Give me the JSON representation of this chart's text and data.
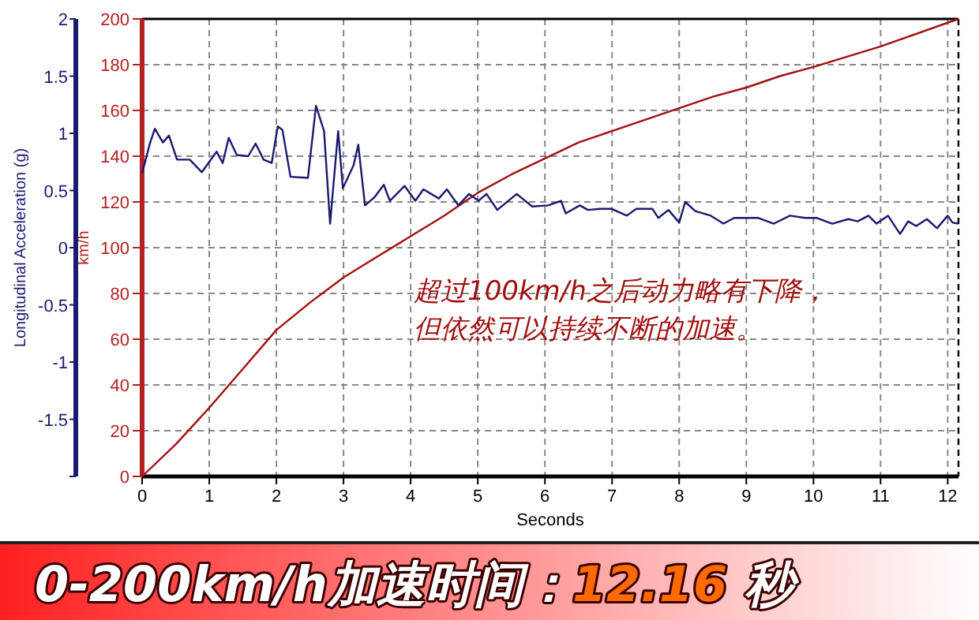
{
  "chart_data": {
    "type": "line",
    "title": "0-200km/h加速时间：12.16 秒",
    "xlabel": "Seconds",
    "ylabel": "km/h",
    "y2label": "Longitudinal Acceleration (g)",
    "xlim": [
      0,
      12.16
    ],
    "xticks": [
      0,
      1,
      2,
      3,
      4,
      5,
      6,
      7,
      8,
      9,
      10,
      11,
      12
    ],
    "ylim": [
      0,
      200
    ],
    "yticks": [
      0,
      20,
      40,
      60,
      80,
      100,
      120,
      140,
      160,
      180,
      200
    ],
    "y2lim": [
      -2,
      2
    ],
    "y2ticks": [
      {
        "value": -2,
        "label": null
      },
      -1.5,
      -1,
      -0.5,
      0,
      0.5,
      1,
      1.5,
      2
    ],
    "grid": true,
    "ref_lines": [
      {
        "axis": "x",
        "value": 12.16,
        "color": "#000000",
        "line_style": "dashed"
      }
    ],
    "annotations": [
      "超过100km/h之后动力略有下降，",
      "但依然可以持续不断的加速。"
    ],
    "series": [
      {
        "color": "#a01010",
        "x": [
          0,
          0.5,
          1,
          1.5,
          2,
          2.5,
          3,
          3.5,
          4,
          4.5,
          5,
          5.5,
          6,
          6.5,
          7,
          7.5,
          8,
          8.5,
          9,
          9.5,
          10,
          11,
          12.16
        ],
        "values": [
          0,
          14,
          30,
          47,
          64,
          76,
          87,
          96,
          105,
          114,
          124,
          132,
          139,
          146,
          151,
          156,
          161,
          166,
          170,
          175,
          179,
          188,
          200
        ]
      },
      {
        "color": "#1a1a6e",
        "axis": "y2",
        "x": [
          0,
          0.12,
          0.19,
          0.31,
          0.4,
          0.52,
          0.71,
          0.89,
          1.11,
          1.2,
          1.29,
          1.41,
          1.58,
          1.69,
          1.81,
          1.93,
          2.02,
          2.09,
          2.21,
          2.47,
          2.59,
          2.71,
          2.8,
          2.92,
          2.99,
          3.15,
          3.22,
          3.32,
          3.46,
          3.6,
          3.69,
          3.91,
          4.07,
          4.19,
          4.42,
          4.54,
          4.71,
          4.87,
          5.01,
          5.13,
          5.29,
          5.58,
          5.81,
          6.05,
          6.24,
          6.31,
          6.52,
          6.64,
          6.82,
          6.99,
          7.22,
          7.36,
          7.6,
          7.69,
          7.84,
          8,
          8.09,
          8.24,
          8.47,
          8.66,
          8.82,
          9.18,
          9.41,
          9.65,
          9.88,
          10.05,
          10.28,
          10.52,
          10.66,
          10.82,
          10.94,
          11.11,
          11.29,
          11.41,
          11.53,
          11.69,
          11.84,
          12,
          12.07,
          12.16
        ],
        "values": [
          0.65,
          0.92,
          1.04,
          0.92,
          0.98,
          0.77,
          0.77,
          0.66,
          0.84,
          0.74,
          0.96,
          0.81,
          0.8,
          0.91,
          0.77,
          0.74,
          1.06,
          1.03,
          0.62,
          0.61,
          1.24,
          1.02,
          0.21,
          1.02,
          0.52,
          0.72,
          0.9,
          0.37,
          0.44,
          0.55,
          0.41,
          0.54,
          0.41,
          0.51,
          0.43,
          0.51,
          0.37,
          0.47,
          0.41,
          0.47,
          0.33,
          0.47,
          0.36,
          0.37,
          0.41,
          0.3,
          0.37,
          0.33,
          0.34,
          0.34,
          0.28,
          0.34,
          0.34,
          0.26,
          0.33,
          0.22,
          0.4,
          0.32,
          0.28,
          0.21,
          0.26,
          0.26,
          0.21,
          0.28,
          0.26,
          0.26,
          0.21,
          0.25,
          0.23,
          0.28,
          0.21,
          0.28,
          0.12,
          0.23,
          0.19,
          0.25,
          0.17,
          0.28,
          0.22,
          0.21
        ]
      }
    ]
  }
}
